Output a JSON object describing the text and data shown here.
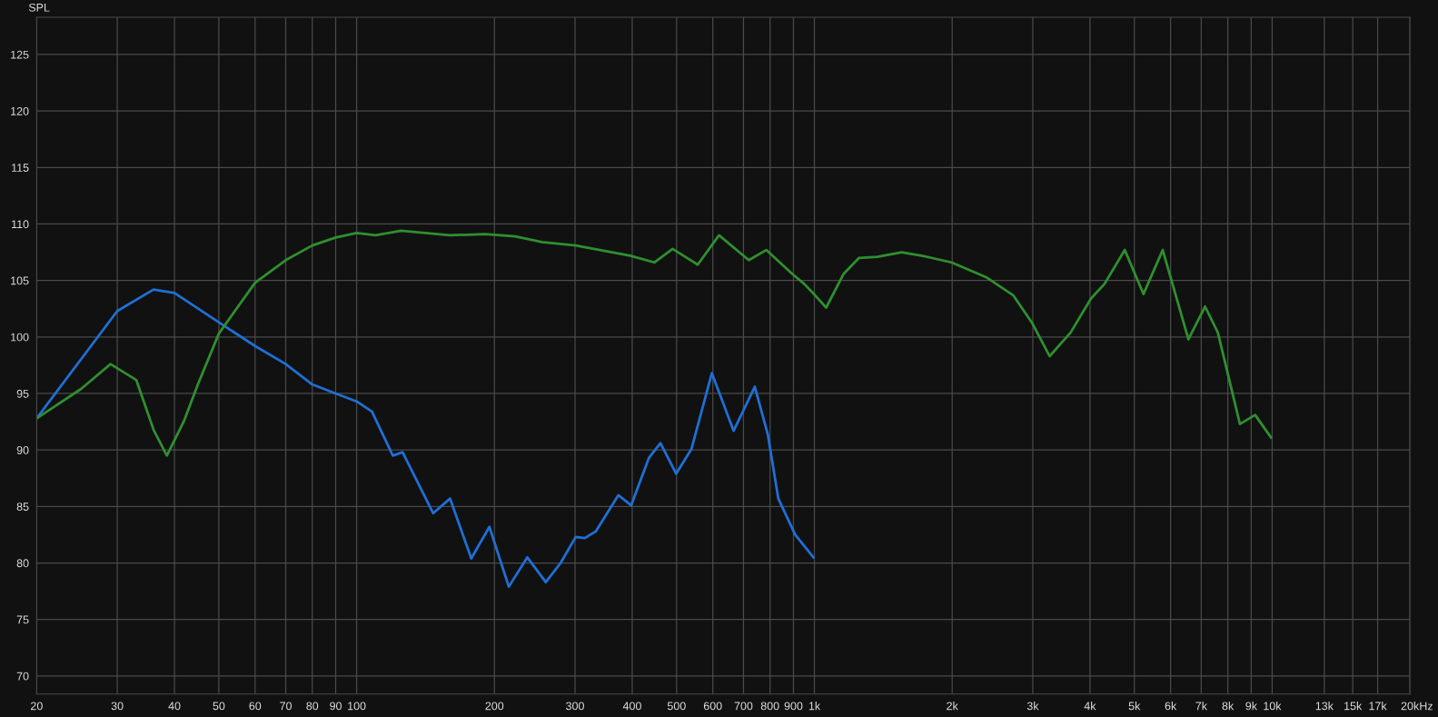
{
  "chart_data": {
    "type": "line",
    "ylabel": "SPL",
    "xlim": [
      20,
      20000
    ],
    "ylim": [
      68.4,
      128.3
    ],
    "log": "x",
    "grid": true,
    "marker": "none",
    "line_style": "solid",
    "xticks": [
      20,
      30,
      40,
      50,
      60,
      70,
      80,
      90,
      100,
      200,
      300,
      400,
      500,
      600,
      700,
      800,
      900,
      {
        "value": 1000,
        "label": "1k"
      },
      {
        "value": 2000,
        "label": "2k"
      },
      {
        "value": 3000,
        "label": "3k"
      },
      {
        "value": 4000,
        "label": "4k"
      },
      {
        "value": 5000,
        "label": "5k"
      },
      {
        "value": 6000,
        "label": "6k"
      },
      {
        "value": 7000,
        "label": "7k"
      },
      {
        "value": 8000,
        "label": "8k"
      },
      {
        "value": 9000,
        "label": "9k"
      },
      {
        "value": 10000,
        "label": "10k"
      },
      {
        "value": 13000,
        "label": "13k"
      },
      {
        "value": 15000,
        "label": "15k"
      },
      {
        "value": 17000,
        "label": "17k"
      },
      {
        "value": 20000,
        "label": "20k"
      }
    ],
    "xlabel": "Hz",
    "yticks": [
      70,
      75,
      80,
      85,
      90,
      95,
      100,
      105,
      110,
      115,
      120,
      125
    ],
    "series": [
      {
        "color": "#1f6fd6",
        "x": [
          20,
          30,
          36,
          40,
          50,
          60,
          70,
          80,
          90,
          100,
          108,
          120,
          126,
          147,
          160,
          178,
          195,
          215,
          236,
          259,
          279,
          301,
          315,
          333,
          373,
          398,
          435,
          461,
          499,
          539,
          597,
          666,
          741,
          791,
          834,
          908,
          995
        ],
        "values": [
          92.8,
          102.3,
          104.2,
          103.9,
          101.3,
          99.2,
          97.6,
          95.8,
          95.0,
          94.3,
          93.4,
          89.5,
          89.8,
          84.4,
          85.7,
          80.4,
          83.2,
          77.9,
          80.5,
          78.3,
          80.0,
          82.3,
          82.2,
          82.8,
          86.0,
          85.1,
          89.3,
          90.6,
          87.9,
          90.1,
          96.8,
          91.7,
          95.6,
          91.4,
          85.7,
          82.5,
          80.5
        ]
      },
      {
        "color": "#2f8f2f",
        "x": [
          20,
          25,
          29,
          33,
          36,
          38.5,
          42,
          45,
          50,
          60,
          70,
          80,
          90,
          100,
          110,
          125,
          160,
          191,
          222,
          254,
          301,
          340,
          396,
          447,
          490,
          556,
          619,
          719,
          785,
          894,
          950,
          1003,
          1061,
          1159,
          1252,
          1372,
          1551,
          1715,
          1993,
          2371,
          2717,
          2984,
          3265,
          3629,
          4020,
          4304,
          4765,
          5235,
          5767,
          6563,
          7136,
          7609,
          8503,
          9180,
          9945
        ],
        "values": [
          92.8,
          95.4,
          97.6,
          96.2,
          91.8,
          89.5,
          92.6,
          95.8,
          100.3,
          104.8,
          106.8,
          108.1,
          108.8,
          109.2,
          109.0,
          109.4,
          109.0,
          109.1,
          108.9,
          108.4,
          108.1,
          107.7,
          107.2,
          106.6,
          107.8,
          106.4,
          109.0,
          106.8,
          107.7,
          105.6,
          104.7,
          103.7,
          102.6,
          105.6,
          107.0,
          107.1,
          107.5,
          107.2,
          106.6,
          105.3,
          103.7,
          101.3,
          98.3,
          100.4,
          103.4,
          104.7,
          107.7,
          103.8,
          107.7,
          99.8,
          102.7,
          100.4,
          92.3,
          93.1,
          91.1
        ]
      }
    ]
  }
}
